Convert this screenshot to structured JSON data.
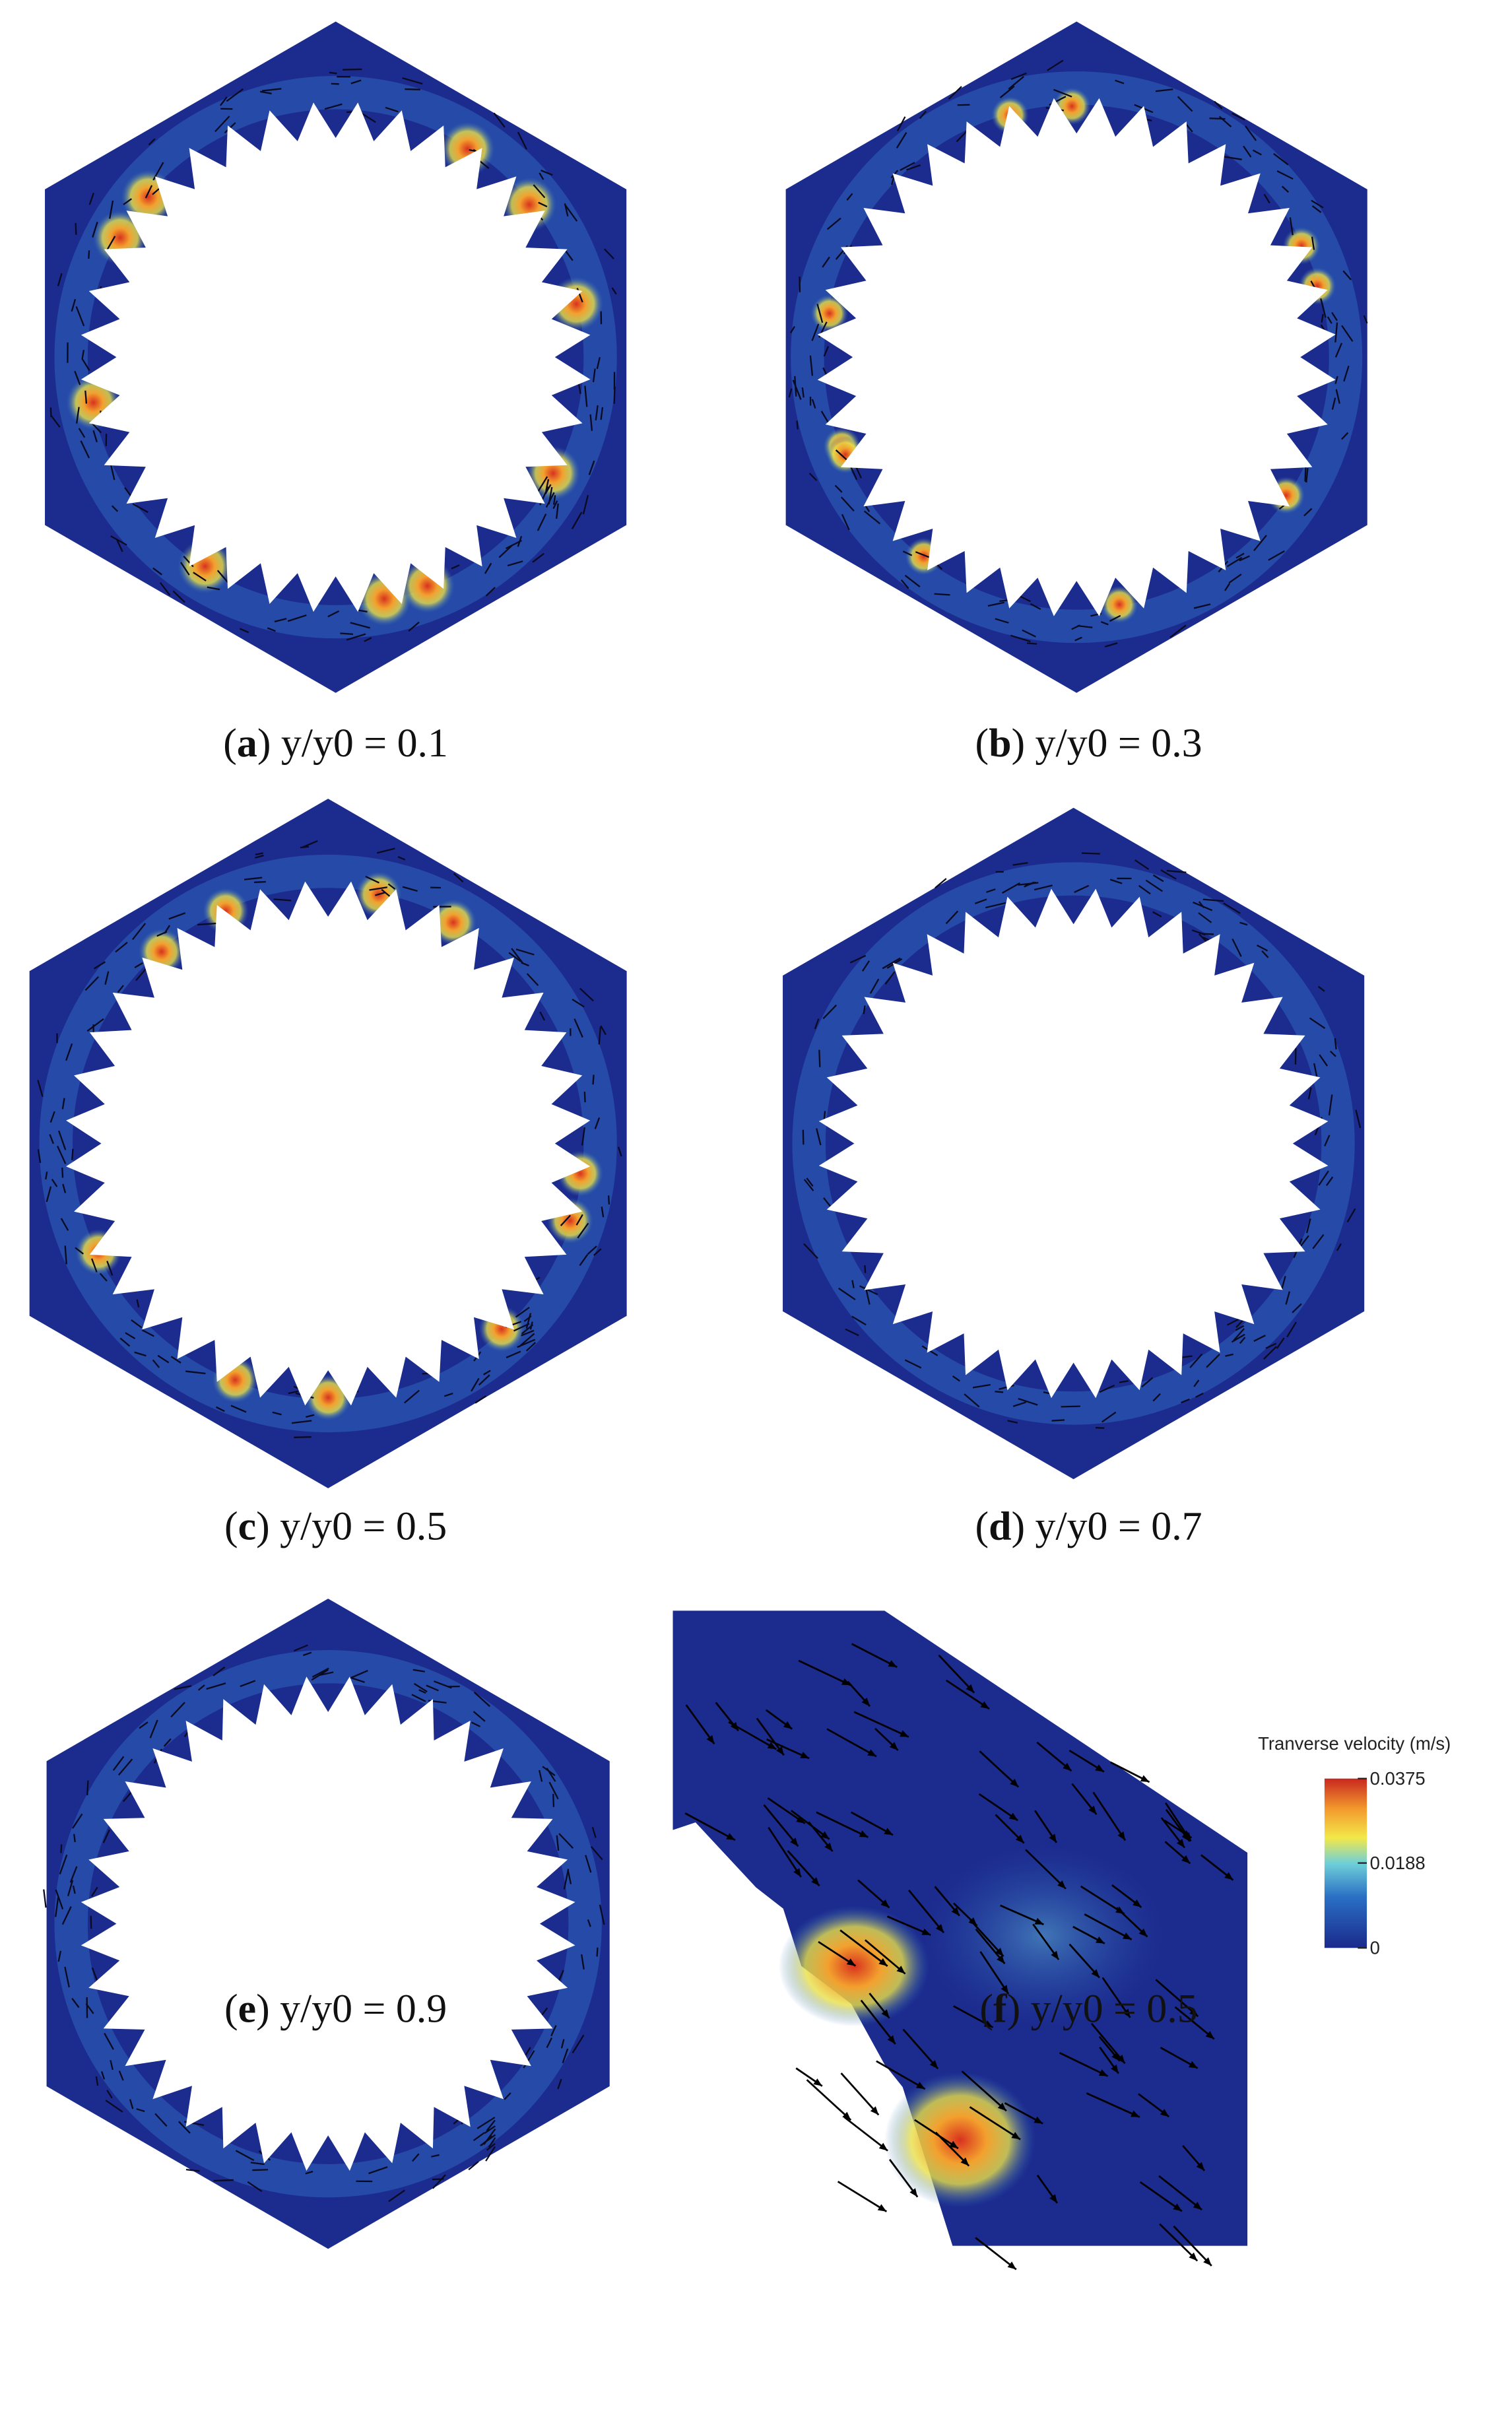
{
  "panels": [
    {
      "caption": [
        "(",
        "a",
        ") y/y0 = 0.1"
      ]
    },
    {
      "caption": [
        "(",
        "b",
        ") y/y0 = 0.3"
      ]
    },
    {
      "caption": [
        "(",
        "c",
        ") y/y0 = 0.5"
      ]
    },
    {
      "caption": [
        "(",
        "d",
        ") y/y0 = 0.7"
      ]
    },
    {
      "caption": [
        "(",
        "e",
        ") y/y0 = 0.9"
      ]
    },
    {
      "caption": [
        "(",
        "f",
        ") y/y0 = 0.5"
      ]
    }
  ],
  "colorbar": {
    "title": "Tranverse velocity (m/s)",
    "ticks": [
      0,
      0.0188,
      0.0375
    ]
  }
}
